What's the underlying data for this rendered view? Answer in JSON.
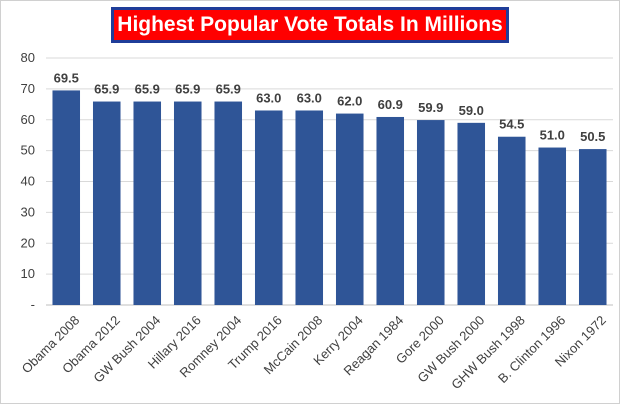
{
  "chart_data": {
    "type": "bar",
    "title": "Highest Popular Vote Totals In Millions",
    "categories": [
      "Obama 2008",
      "Obama 2012",
      "GW Bush 2004",
      "Hillary 2016",
      "Romney 2004",
      "Trump 2016",
      "McCain 2008",
      "Kerry 2004",
      "Reagan 1984",
      "Gore 2000",
      "GW Bush 2000",
      "GHW Bush 1998",
      "B. Clinton 1996",
      "Nixon 1972"
    ],
    "values": [
      69.5,
      65.9,
      65.9,
      65.9,
      65.9,
      63.0,
      63.0,
      62.0,
      60.9,
      59.9,
      59.0,
      54.5,
      51.0,
      50.5
    ],
    "data_labels": [
      "69.5",
      "65.9",
      "65.9",
      "65.9",
      "65.9",
      "63.0",
      "63.0",
      "62.0",
      "60.9",
      "59.9",
      "59.0",
      "54.5",
      "51.0",
      "50.5"
    ],
    "y_ticks": [
      "-",
      "10",
      "20",
      "30",
      "40",
      "50",
      "60",
      "70",
      "80"
    ],
    "ylim": [
      0,
      80
    ],
    "grid": true,
    "legend": "none",
    "bar_color": "#2f5597",
    "title_background": "#ff0000",
    "title_border": "#1f3d99"
  }
}
